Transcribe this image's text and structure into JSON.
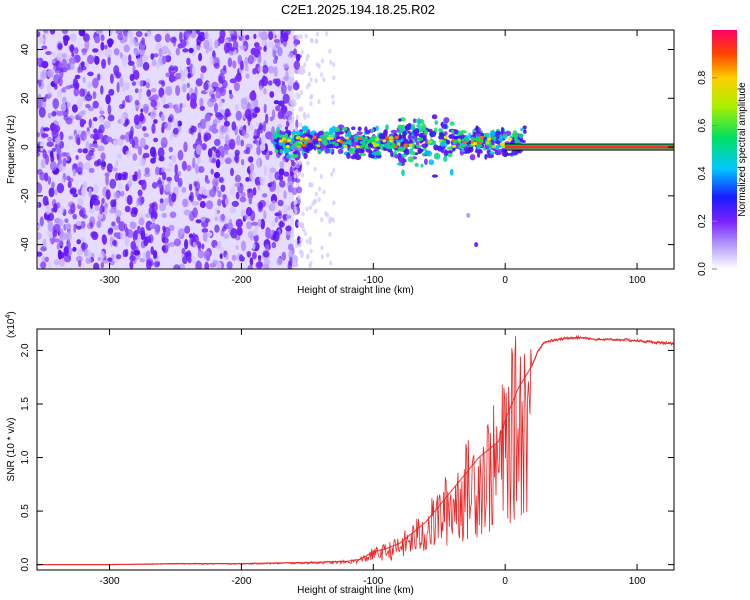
{
  "title": "C2E1.2025.194.18.25.R02",
  "chart_data": [
    {
      "type": "heatmap",
      "xlabel": "Height of straight line (km)",
      "ylabel": "Frequency (Hz)",
      "xlim": [
        -355,
        128
      ],
      "ylim": [
        -50,
        48
      ],
      "xticks": [
        -300,
        -200,
        -100,
        0,
        100
      ],
      "yticks": [
        -40,
        -20,
        0,
        20,
        40
      ],
      "colorbar": {
        "label": "Normalized spectral amplitude",
        "range": [
          0,
          1
        ],
        "ticks": [
          0.0,
          0.2,
          0.4,
          0.6,
          0.8
        ]
      },
      "features": {
        "noise_region_x": [
          -355,
          -160
        ],
        "signal_band_start_x": -175,
        "tone_x": [
          0,
          128
        ],
        "tone_frequency": 0.5,
        "drift_track": [
          [
            -28,
            -28
          ],
          [
            -22,
            -40
          ]
        ]
      },
      "grid": false
    },
    {
      "type": "line",
      "xlabel": "Height of straight line (km)",
      "ylabel": "SNR (10 * v/v)",
      "yscale_label": "(x10",
      "yscale_exponent": "4",
      "xlim": [
        -355,
        128
      ],
      "ylim": [
        -0.05,
        2.2
      ],
      "xticks": [
        -300,
        -200,
        -100,
        0,
        100
      ],
      "yticks": [
        0.0,
        0.5,
        1.0,
        1.5,
        2.0
      ],
      "series": [
        {
          "color": "#ee2222",
          "x": [
            -355,
            -300,
            -250,
            -200,
            -150,
            -120,
            -110,
            -100,
            -90,
            -80,
            -70,
            -60,
            -50,
            -40,
            -30,
            -20,
            -15,
            -10,
            -5,
            0,
            5,
            10,
            15,
            20,
            25,
            30,
            40,
            50,
            60,
            70,
            80,
            90,
            100,
            110,
            120,
            128
          ],
          "y": [
            0.0,
            0.0,
            0.01,
            0.01,
            0.02,
            0.03,
            0.05,
            0.12,
            0.15,
            0.2,
            0.3,
            0.4,
            0.55,
            0.7,
            0.85,
            1.0,
            1.05,
            1.1,
            1.15,
            1.35,
            1.5,
            1.65,
            1.75,
            1.85,
            2.0,
            2.08,
            2.1,
            2.12,
            2.12,
            2.1,
            2.1,
            2.1,
            2.09,
            2.08,
            2.07,
            2.06
          ]
        }
      ]
    }
  ]
}
